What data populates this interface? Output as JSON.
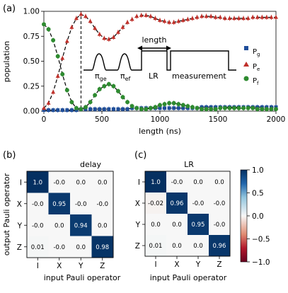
{
  "panel_labels": {
    "a": "(a)",
    "b": "(b)",
    "c": "(c)"
  },
  "chart_data": [
    {
      "type": "scatter",
      "panel": "(a)",
      "xlabel": "length (ns)",
      "ylabel": "population",
      "xlim": [
        0,
        2000
      ],
      "ylim": [
        0,
        1.0
      ],
      "xticks": [
        0,
        500,
        1000,
        1500,
        2000
      ],
      "yticks": [
        "0.00",
        "0.25",
        "0.50",
        "0.75",
        "1.00"
      ],
      "vline_x": 320,
      "series": [
        {
          "name": "P_g",
          "color": "#1f4e9a",
          "marker": "square",
          "x": [
            0,
            40,
            80,
            120,
            160,
            200,
            240,
            280,
            320,
            360,
            400,
            440,
            480,
            520,
            560,
            600,
            640,
            680,
            720,
            760,
            800,
            840,
            880,
            920,
            960,
            1000,
            1040,
            1080,
            1120,
            1160,
            1200,
            1240,
            1280,
            1320,
            1360,
            1400,
            1440,
            1480,
            1520,
            1560,
            1600,
            1640,
            1680,
            1720,
            1760,
            1800,
            1840,
            1880,
            1920,
            1960,
            2000
          ],
          "values": [
            0.01,
            0.01,
            0.01,
            0.01,
            0.01,
            0.01,
            0.01,
            0.01,
            0.02,
            0.02,
            0.02,
            0.02,
            0.02,
            0.02,
            0.02,
            0.02,
            0.02,
            0.02,
            0.02,
            0.03,
            0.03,
            0.03,
            0.03,
            0.03,
            0.03,
            0.03,
            0.03,
            0.03,
            0.03,
            0.03,
            0.03,
            0.03,
            0.03,
            0.03,
            0.04,
            0.04,
            0.04,
            0.04,
            0.04,
            0.04,
            0.04,
            0.04,
            0.04,
            0.04,
            0.04,
            0.04,
            0.04,
            0.04,
            0.04,
            0.04,
            0.04
          ]
        },
        {
          "name": "P_e",
          "color": "#c0302a",
          "marker": "triangle",
          "x": [
            0,
            40,
            80,
            120,
            160,
            200,
            240,
            280,
            320,
            360,
            400,
            440,
            480,
            520,
            560,
            600,
            640,
            680,
            720,
            760,
            800,
            840,
            880,
            920,
            960,
            1000,
            1040,
            1080,
            1120,
            1160,
            1200,
            1240,
            1280,
            1320,
            1360,
            1400,
            1440,
            1480,
            1520,
            1560,
            1600,
            1640,
            1680,
            1720,
            1760,
            1800,
            1840,
            1880,
            1920,
            1960,
            2000
          ],
          "values": [
            0.03,
            0.08,
            0.19,
            0.35,
            0.53,
            0.7,
            0.84,
            0.93,
            0.97,
            0.95,
            0.9,
            0.83,
            0.77,
            0.73,
            0.72,
            0.74,
            0.79,
            0.84,
            0.89,
            0.92,
            0.95,
            0.96,
            0.96,
            0.95,
            0.93,
            0.91,
            0.9,
            0.89,
            0.89,
            0.9,
            0.91,
            0.92,
            0.93,
            0.94,
            0.95,
            0.95,
            0.95,
            0.94,
            0.94,
            0.93,
            0.93,
            0.93,
            0.93,
            0.93,
            0.93,
            0.94,
            0.94,
            0.94,
            0.94,
            0.94,
            0.94
          ]
        },
        {
          "name": "P_f",
          "color": "#2e8b30",
          "marker": "circle",
          "x": [
            0,
            40,
            80,
            120,
            160,
            200,
            240,
            280,
            320,
            360,
            400,
            440,
            480,
            520,
            560,
            600,
            640,
            680,
            720,
            760,
            800,
            840,
            880,
            920,
            960,
            1000,
            1040,
            1080,
            1120,
            1160,
            1200,
            1240,
            1280,
            1320,
            1360,
            1400,
            1440,
            1480,
            1520,
            1560,
            1600,
            1640,
            1680,
            1720,
            1760,
            1800,
            1840,
            1880,
            1920,
            1960,
            2000
          ],
          "values": [
            0.87,
            0.82,
            0.71,
            0.55,
            0.37,
            0.21,
            0.09,
            0.03,
            0.02,
            0.04,
            0.09,
            0.16,
            0.22,
            0.25,
            0.27,
            0.25,
            0.2,
            0.14,
            0.09,
            0.05,
            0.03,
            0.02,
            0.02,
            0.03,
            0.04,
            0.06,
            0.07,
            0.08,
            0.08,
            0.07,
            0.06,
            0.05,
            0.04,
            0.03,
            0.02,
            0.02,
            0.02,
            0.02,
            0.03,
            0.03,
            0.03,
            0.03,
            0.03,
            0.03,
            0.03,
            0.03,
            0.02,
            0.02,
            0.02,
            0.02,
            0.02
          ]
        }
      ],
      "inset": {
        "pulse_labels": [
          "π",
          "π",
          "LR",
          "measurement"
        ],
        "pulse_subscripts": [
          "ge",
          "ef",
          "",
          ""
        ],
        "arrow_label": "length"
      }
    },
    {
      "type": "heatmap",
      "panel": "(b)",
      "title": "delay",
      "xlabel": "input Pauli operator",
      "ylabel": "output Pauli operator",
      "xticks": [
        "I",
        "X",
        "Y",
        "Z"
      ],
      "yticks": [
        "I",
        "X",
        "Y",
        "Z"
      ],
      "values": [
        [
          1.0,
          -0.0,
          0.0,
          0.0
        ],
        [
          -0.0,
          0.95,
          -0.0,
          -0.0
        ],
        [
          -0.0,
          0.0,
          0.94,
          0.0
        ],
        [
          0.01,
          -0.0,
          0.0,
          0.98
        ]
      ],
      "labels": [
        [
          "1.0",
          "-0.0",
          "0.0",
          "0.0"
        ],
        [
          "-0.0",
          "0.95",
          "-0.0",
          "-0.0"
        ],
        [
          "-0.0",
          "0.0",
          "0.94",
          "0.0"
        ],
        [
          "0.01",
          "-0.0",
          "0.0",
          "0.98"
        ]
      ]
    },
    {
      "type": "heatmap",
      "panel": "(c)",
      "title": "LR",
      "xlabel": "input Pauli operator",
      "xticks": [
        "I",
        "X",
        "Y",
        "Z"
      ],
      "yticks": [
        "I",
        "X",
        "Y",
        "Z"
      ],
      "values": [
        [
          1.0,
          -0.0,
          0.0,
          0.0
        ],
        [
          -0.02,
          0.96,
          -0.0,
          -0.0
        ],
        [
          0.0,
          0.0,
          0.95,
          -0.0
        ],
        [
          0.01,
          0.0,
          0.0,
          0.96
        ]
      ],
      "labels": [
        [
          "1.0",
          "-0.0",
          "0.0",
          "0.0"
        ],
        [
          "-0.02",
          "0.96",
          "-0.0",
          "-0.0"
        ],
        [
          "0.0",
          "0.0",
          "0.95",
          "-0.0"
        ],
        [
          "0.01",
          "0.0",
          "0.0",
          "0.96"
        ]
      ]
    }
  ],
  "colorbar": {
    "vmin": -1.0,
    "vmax": 1.0,
    "ticks": [
      "1.0",
      "0.5",
      "0.0",
      "−0.5",
      "−1.0"
    ],
    "colors": {
      "neg": "#67001f",
      "zero": "#f7f7f7",
      "pos": "#053061"
    }
  }
}
